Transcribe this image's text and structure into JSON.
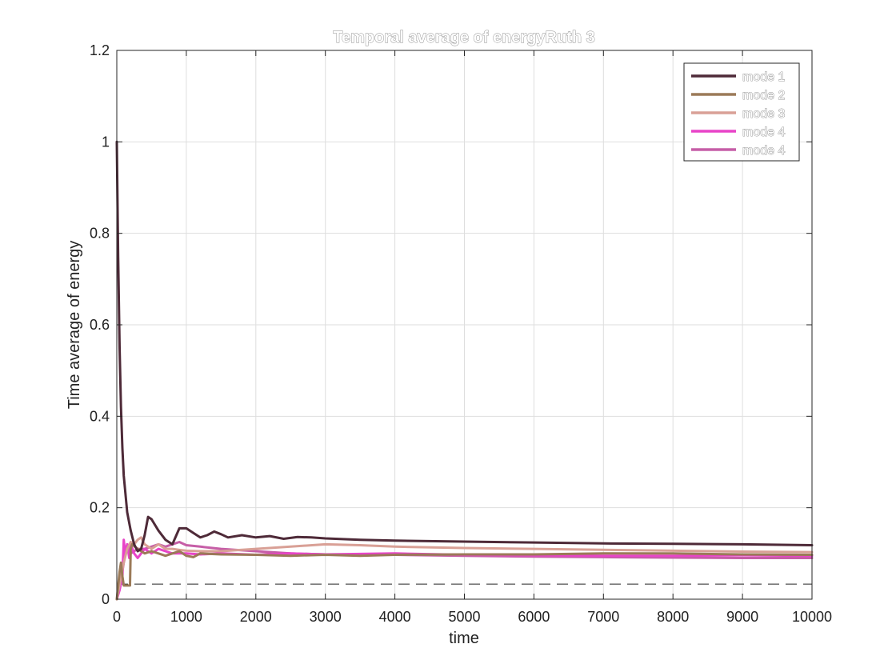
{
  "chart_data": {
    "type": "line",
    "title": "Temporal average of energyRuth 3",
    "xlabel": "time",
    "ylabel": "Time average of energy",
    "xlim": [
      0,
      10000
    ],
    "ylim": [
      0,
      1.2
    ],
    "xticks": [
      0,
      1000,
      2000,
      3000,
      4000,
      5000,
      6000,
      7000,
      8000,
      9000,
      10000
    ],
    "yticks": [
      0,
      0.2,
      0.4,
      0.6,
      0.8,
      1,
      1.2
    ],
    "xtick_labels": [
      "0",
      "1000",
      "2000",
      "3000",
      "4000",
      "5000",
      "6000",
      "7000",
      "8000",
      "9000",
      "10000"
    ],
    "ytick_labels": [
      "0",
      "0.2",
      "0.4",
      "0.6",
      "0.8",
      "1",
      "1.2"
    ],
    "grid": true,
    "legend_position": "top-right",
    "reference_line": {
      "y": 0.033,
      "style": "dashed"
    },
    "series": [
      {
        "name": "mode 1",
        "color": "#4e2a38",
        "x": [
          0,
          20,
          40,
          60,
          80,
          100,
          150,
          200,
          250,
          300,
          350,
          400,
          450,
          500,
          600,
          700,
          800,
          900,
          1000,
          1100,
          1200,
          1300,
          1400,
          1500,
          1600,
          1800,
          2000,
          2200,
          2400,
          2600,
          2800,
          3000,
          3500,
          4000,
          5000,
          6000,
          7000,
          8000,
          9000,
          10000
        ],
        "y": [
          1.0,
          0.75,
          0.55,
          0.42,
          0.33,
          0.27,
          0.19,
          0.15,
          0.12,
          0.105,
          0.11,
          0.14,
          0.18,
          0.175,
          0.15,
          0.13,
          0.12,
          0.155,
          0.155,
          0.145,
          0.135,
          0.14,
          0.148,
          0.142,
          0.135,
          0.14,
          0.135,
          0.138,
          0.132,
          0.136,
          0.135,
          0.133,
          0.13,
          0.128,
          0.126,
          0.124,
          0.122,
          0.121,
          0.12,
          0.118
        ]
      },
      {
        "name": "mode 2",
        "color": "#9b7a58",
        "x": [
          0,
          40,
          60,
          80,
          100,
          150,
          190,
          200,
          220,
          300,
          400,
          500,
          600,
          700,
          800,
          900,
          1000,
          1100,
          1200,
          1500,
          2000,
          2500,
          3000,
          3500,
          4000,
          5000,
          6000,
          7000,
          8000,
          9000,
          10000
        ],
        "y": [
          0.0,
          0.06,
          0.08,
          0.05,
          0.03,
          0.03,
          0.03,
          0.11,
          0.12,
          0.11,
          0.1,
          0.105,
          0.1,
          0.095,
          0.1,
          0.105,
          0.095,
          0.092,
          0.1,
          0.098,
          0.097,
          0.095,
          0.097,
          0.095,
          0.097,
          0.098,
          0.098,
          0.1,
          0.1,
          0.098,
          0.097
        ]
      },
      {
        "name": "mode 3",
        "color": "#d9a096",
        "x": [
          0,
          50,
          100,
          150,
          200,
          250,
          300,
          350,
          400,
          500,
          600,
          700,
          800,
          900,
          1000,
          1200,
          1500,
          2000,
          2500,
          3000,
          3500,
          4000,
          5000,
          6000,
          7000,
          8000,
          9000,
          10000
        ],
        "y": [
          0.0,
          0.04,
          0.08,
          0.11,
          0.125,
          0.12,
          0.13,
          0.135,
          0.12,
          0.11,
          0.12,
          0.11,
          0.11,
          0.108,
          0.106,
          0.105,
          0.105,
          0.11,
          0.115,
          0.12,
          0.118,
          0.115,
          0.112,
          0.11,
          0.108,
          0.106,
          0.104,
          0.103
        ]
      },
      {
        "name": "mode 4",
        "color": "#e844c8",
        "x": [
          0,
          40,
          80,
          100,
          120,
          150,
          180,
          200,
          250,
          300,
          350,
          400,
          500,
          600,
          700,
          800,
          1000,
          1200,
          1500,
          2000,
          2500,
          3000,
          4000,
          5000,
          6000,
          7000,
          8000,
          9000,
          10000
        ],
        "y": [
          0.0,
          0.02,
          0.05,
          0.13,
          0.1,
          0.12,
          0.09,
          0.12,
          0.1,
          0.09,
          0.1,
          0.11,
          0.1,
          0.11,
          0.105,
          0.1,
          0.1,
          0.098,
          0.1,
          0.097,
          0.1,
          0.098,
          0.1,
          0.097,
          0.096,
          0.095,
          0.095,
          0.096,
          0.095
        ]
      },
      {
        "name": "mode 4",
        "color": "#c65ea7",
        "x": [
          0,
          50,
          100,
          150,
          200,
          250,
          300,
          400,
          500,
          600,
          700,
          800,
          900,
          1000,
          1200,
          1500,
          2000,
          2500,
          3000,
          4000,
          5000,
          6000,
          7000,
          8000,
          9000,
          10000
        ],
        "y": [
          0.0,
          0.03,
          0.08,
          0.12,
          0.1,
          0.105,
          0.11,
          0.11,
          0.115,
          0.12,
          0.115,
          0.12,
          0.125,
          0.118,
          0.115,
          0.11,
          0.105,
          0.1,
          0.098,
          0.097,
          0.095,
          0.093,
          0.092,
          0.091,
          0.09,
          0.09
        ]
      }
    ]
  }
}
